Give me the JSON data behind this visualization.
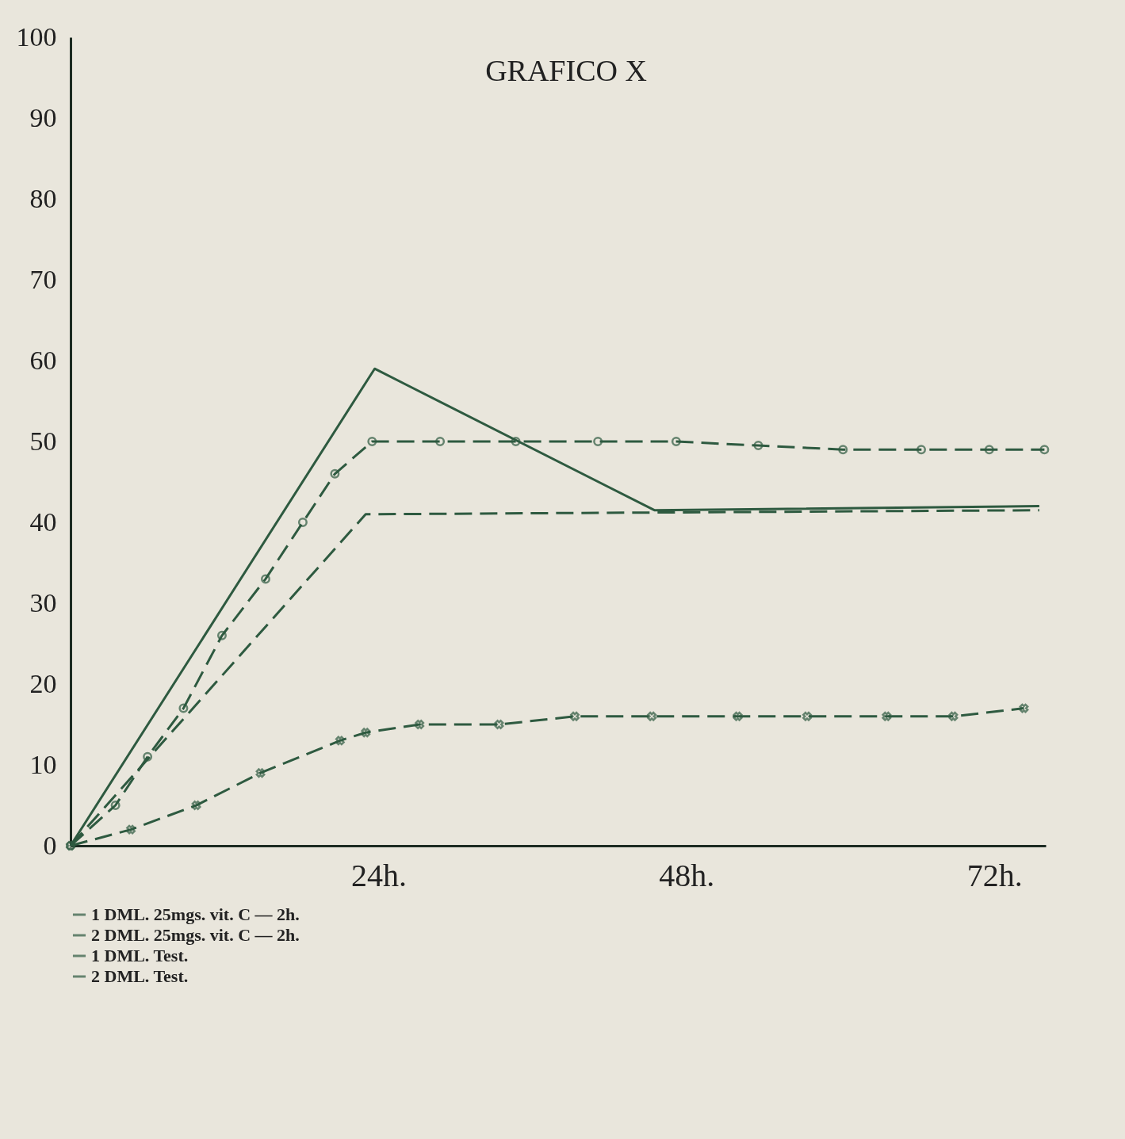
{
  "chart_data": {
    "type": "line",
    "title": "GRAFICO X",
    "xlim": [
      0,
      76
    ],
    "xticks": [
      {
        "value": 24,
        "label": "24h."
      },
      {
        "value": 48,
        "label": "48h."
      },
      {
        "value": 72,
        "label": "72h."
      }
    ],
    "ylim": [
      0,
      100
    ],
    "yticks": [
      0,
      10,
      20,
      30,
      40,
      50,
      60,
      70,
      80,
      90,
      100
    ],
    "grid": false,
    "legend": "bottom",
    "series": [
      {
        "name": "1 DML.  25mgs. vit. C — 2h.",
        "color": "#2e5a40",
        "line_style": "solid",
        "marker": "none",
        "x": [
          0,
          23.7,
          45.5,
          75.5
        ],
        "values": [
          0,
          59,
          41.5,
          42
        ]
      },
      {
        "name": "2 DML.  25mgs. vit. C — 2h.",
        "color": "#2e5a40",
        "line_style": "dashed",
        "marker": "none",
        "x": [
          0,
          23,
          75.5
        ],
        "values": [
          0,
          41,
          41.5
        ]
      },
      {
        "name": "1 DML.  Test.",
        "color": "#2e5a40",
        "line_style": "dashed",
        "marker": "circle",
        "x": [
          0,
          3.5,
          6,
          8.8,
          11.8,
          15.2,
          18.1,
          20.6,
          23.5,
          28.8,
          34.7,
          41.1,
          47.2,
          53.6,
          60.2,
          66.3,
          71.6,
          75.9
        ],
        "values": [
          0,
          5,
          11,
          17,
          26,
          33,
          40,
          46,
          50,
          50,
          50,
          50,
          50,
          49.5,
          49,
          49,
          49,
          49
        ]
      },
      {
        "name": "2 DML.  Test.",
        "color": "#2e5a40",
        "line_style": "dashed",
        "marker": "cross",
        "x": [
          0,
          4.7,
          9.8,
          14.8,
          21,
          23,
          27.2,
          33.4,
          39.3,
          45.3,
          52,
          57.4,
          63.6,
          68.8,
          74.3
        ],
        "values": [
          0,
          2,
          5,
          9,
          13,
          14,
          15,
          15,
          16,
          16,
          16,
          16,
          16,
          16,
          17
        ]
      }
    ]
  }
}
